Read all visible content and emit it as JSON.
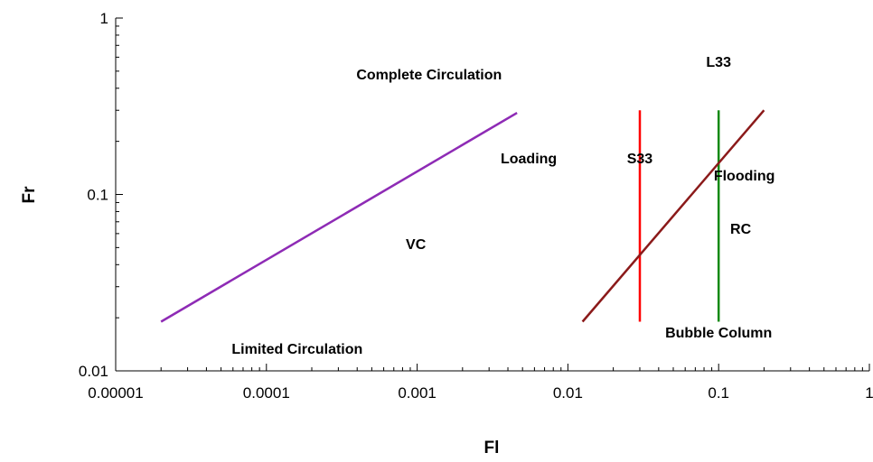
{
  "chart_data": {
    "type": "line",
    "title": "",
    "xlabel": "Fl",
    "ylabel": "Fr",
    "xscale": "log",
    "yscale": "log",
    "xlim": [
      1e-05,
      1
    ],
    "ylim": [
      0.01,
      1
    ],
    "grid": false,
    "x_ticks": [
      {
        "value": 1e-05,
        "label": "0.00001"
      },
      {
        "value": 0.0001,
        "label": "0.0001"
      },
      {
        "value": 0.001,
        "label": "0.001"
      },
      {
        "value": 0.01,
        "label": "0.01"
      },
      {
        "value": 0.1,
        "label": "0.1"
      },
      {
        "value": 1,
        "label": "1"
      }
    ],
    "y_ticks": [
      {
        "value": 0.01,
        "label": "0.01"
      },
      {
        "value": 0.1,
        "label": "0.1"
      },
      {
        "value": 1,
        "label": "1"
      }
    ],
    "series": [
      {
        "color": "#8e2bb5",
        "x": [
          2e-05,
          0.0046
        ],
        "y": [
          0.019,
          0.29
        ]
      },
      {
        "color": "#ff0000",
        "x": [
          0.03,
          0.03
        ],
        "y": [
          0.019,
          0.3
        ]
      },
      {
        "color": "#118a11",
        "x": [
          0.1,
          0.1
        ],
        "y": [
          0.019,
          0.3
        ]
      },
      {
        "color": "#8b1a1a",
        "x": [
          0.0125,
          0.2
        ],
        "y": [
          0.019,
          0.3
        ]
      }
    ],
    "annotations": [
      {
        "text": "Complete Circulation",
        "x": 0.0012,
        "y": 0.45
      },
      {
        "text": "Loading",
        "x": 0.0055,
        "y": 0.15
      },
      {
        "text": "S33",
        "x": 0.03,
        "y": 0.15
      },
      {
        "text": "L33",
        "x": 0.1,
        "y": 0.53
      },
      {
        "text": "Flooding",
        "x": 0.148,
        "y": 0.12
      },
      {
        "text": "RC",
        "x": 0.14,
        "y": 0.06
      },
      {
        "text": "VC",
        "x": 0.00098,
        "y": 0.049
      },
      {
        "text": "Bubble Column",
        "x": 0.1,
        "y": 0.0155
      },
      {
        "text": "Limited Circulation",
        "x": 0.00016,
        "y": 0.0125
      }
    ]
  }
}
